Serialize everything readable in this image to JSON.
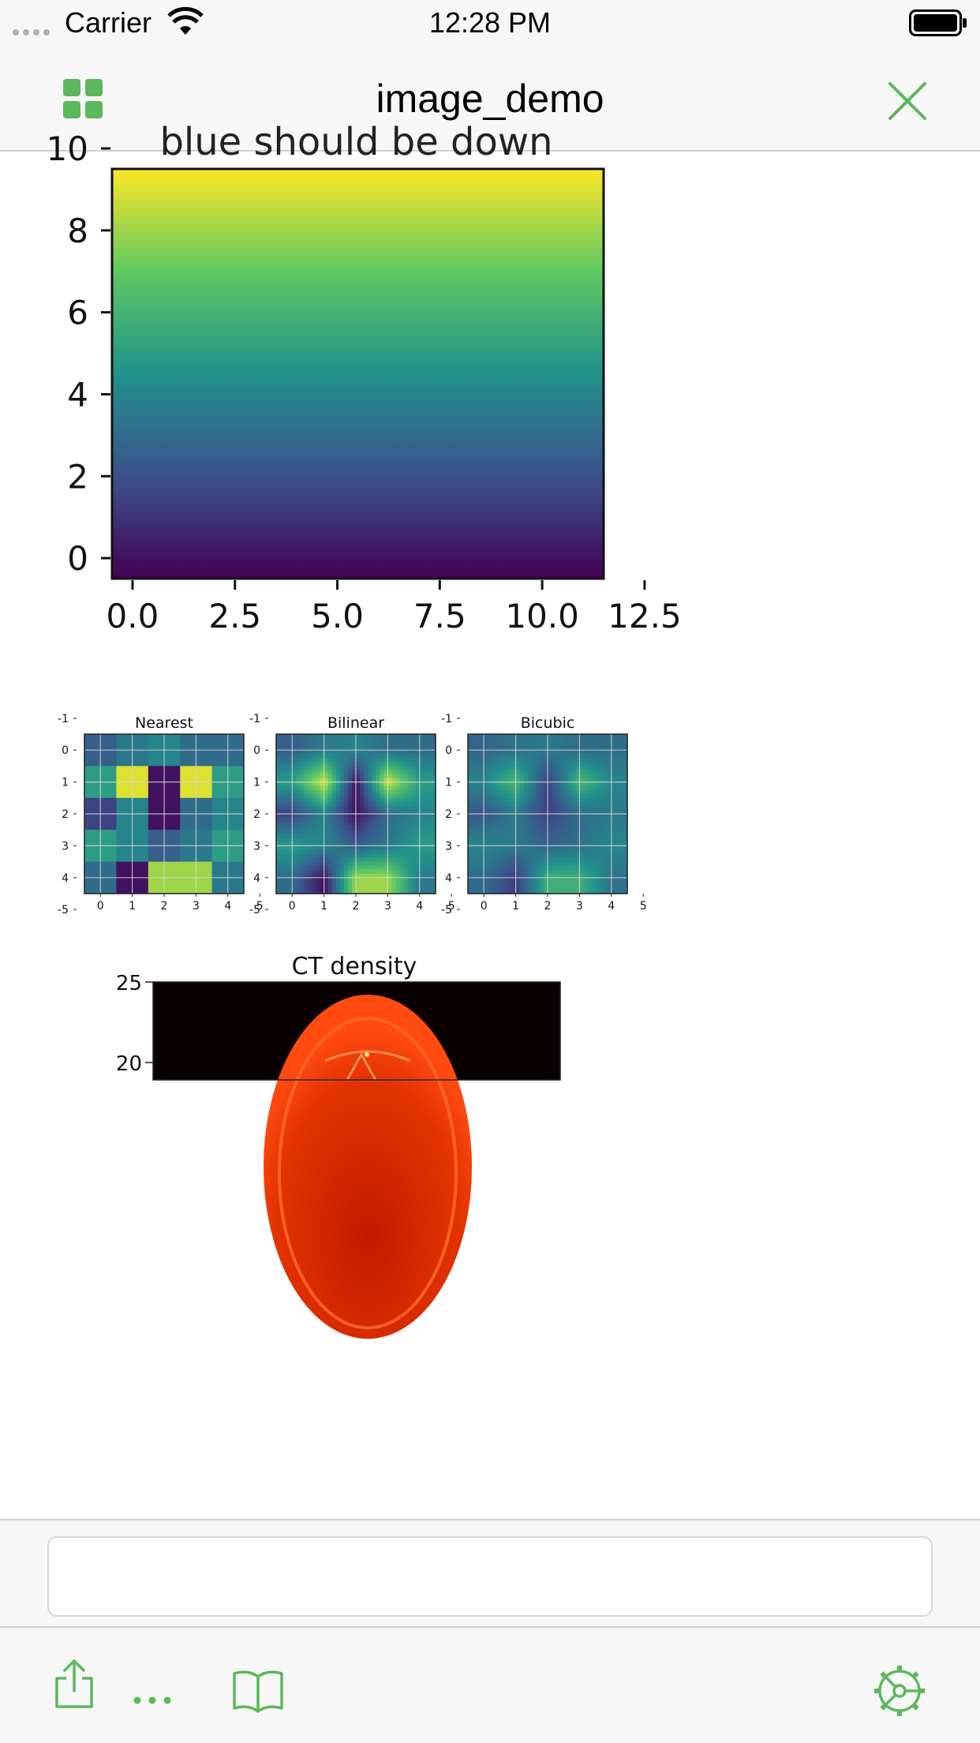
{
  "status_bar": {
    "carrier": "Carrier",
    "time": "12:28 PM"
  },
  "nav_bar": {
    "title": "image_demo"
  },
  "input": {
    "value": "",
    "placeholder": ""
  },
  "colors": {
    "accent": "#5cb85c",
    "bar_bg": "#f7f7f7"
  },
  "icons": [
    "grid-icon",
    "close-icon",
    "share-icon",
    "more-icon",
    "book-icon",
    "settings-icon",
    "wifi-icon",
    "battery-icon"
  ],
  "chart_data": [
    {
      "type": "heatmap",
      "title": "blue should be down",
      "colormap": "viridis",
      "description_values": {
        "bottom": 0,
        "top": 10
      },
      "x_ticks": [
        "0.0",
        "2.5",
        "5.0",
        "7.5",
        "10.0",
        "12.5"
      ],
      "x_tick_values": [
        0,
        2.5,
        5,
        7.5,
        10,
        12.5
      ],
      "y_ticks": [
        "0",
        "2",
        "4",
        "6",
        "8",
        "10"
      ],
      "y_tick_values": [
        0,
        2,
        4,
        6,
        8,
        10
      ],
      "xlim": [
        -0.5,
        11.5
      ],
      "ylim": [
        -0.5,
        9.5
      ]
    },
    {
      "type": "heatmap",
      "colormap": "viridis",
      "panels": [
        {
          "title": "Nearest",
          "interpolation": "nearest"
        },
        {
          "title": "Bilinear",
          "interpolation": "bilinear"
        },
        {
          "title": "Bicubic",
          "interpolation": "bicubic"
        }
      ],
      "grid": [
        [
          0.3,
          0.4,
          0.45,
          0.35,
          0.35
        ],
        [
          0.55,
          0.95,
          0.05,
          0.95,
          0.55
        ],
        [
          0.2,
          0.45,
          0.05,
          0.35,
          0.45
        ],
        [
          0.55,
          0.45,
          0.3,
          0.4,
          0.55
        ],
        [
          0.35,
          0.05,
          0.85,
          0.85,
          0.4
        ]
      ],
      "x_ticks": [
        "0",
        "1",
        "2",
        "3",
        "4",
        "5"
      ],
      "y_ticks": [
        "-1",
        "0",
        "1",
        "2",
        "3",
        "4",
        "-5"
      ],
      "corner_ticks": [
        "-1",
        "-5"
      ]
    },
    {
      "type": "heatmap",
      "title": "CT density",
      "colormap": "hot",
      "y_ticks": [
        "25",
        "20"
      ]
    }
  ]
}
